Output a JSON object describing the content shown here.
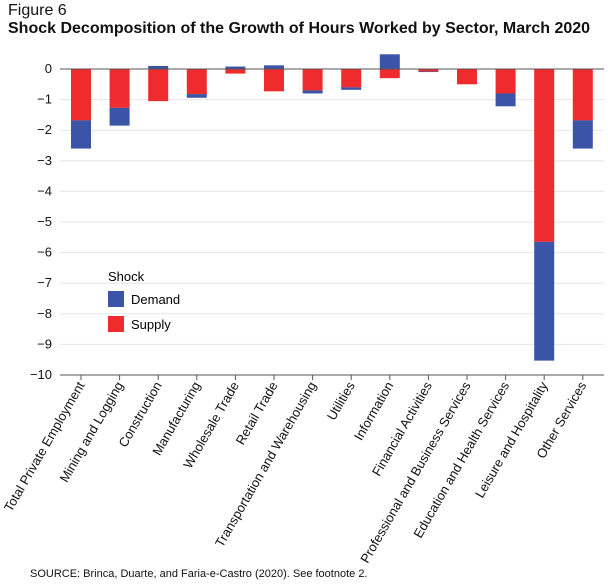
{
  "figure_label": "Figure 6",
  "title": "Shock Decomposition of the Growth of Hours Worked by Sector, March 2020",
  "source": "SOURCE: Brinca, Duarte, and Faria-e-Castro (2020). See footnote 2.",
  "colors": {
    "demand": "#3a55a8",
    "supply": "#ef2b2d",
    "grid": "#e6e6e6",
    "axis": "#555555"
  },
  "chart_data": {
    "type": "bar",
    "stacked": true,
    "title": "Shock Decomposition of the Growth of Hours Worked by Sector, March 2020",
    "xlabel": "",
    "ylabel": "",
    "ylim": [
      -10,
      0
    ],
    "yticks": [
      0,
      -1,
      -2,
      -3,
      -4,
      -5,
      -6,
      -7,
      -8,
      -9,
      -10
    ],
    "grid": true,
    "legend": {
      "title": "Shock",
      "position": "lower-left"
    },
    "categories": [
      "Total Private Employment",
      "Mining and Logging",
      "Construction",
      "Manufacturing",
      "Wholesale Trade",
      "Retail Trade",
      "Transportation and Warehousing",
      "Utilities",
      "Information",
      "Financial Activities",
      "Professional and Business Services",
      "Education and Health Services",
      "Leisure and Hospitality",
      "Other Services"
    ],
    "series": [
      {
        "name": "Demand",
        "values": [
          -0.92,
          -0.58,
          0.1,
          -0.12,
          0.08,
          0.12,
          -0.1,
          -0.08,
          0.48,
          -0.02,
          0.0,
          -0.42,
          -3.88,
          -0.92
        ]
      },
      {
        "name": "Supply",
        "values": [
          -1.68,
          -1.27,
          -1.05,
          -0.82,
          -0.15,
          -0.73,
          -0.7,
          -0.6,
          -0.3,
          -0.08,
          -0.5,
          -0.8,
          -5.65,
          -1.68
        ]
      }
    ]
  }
}
